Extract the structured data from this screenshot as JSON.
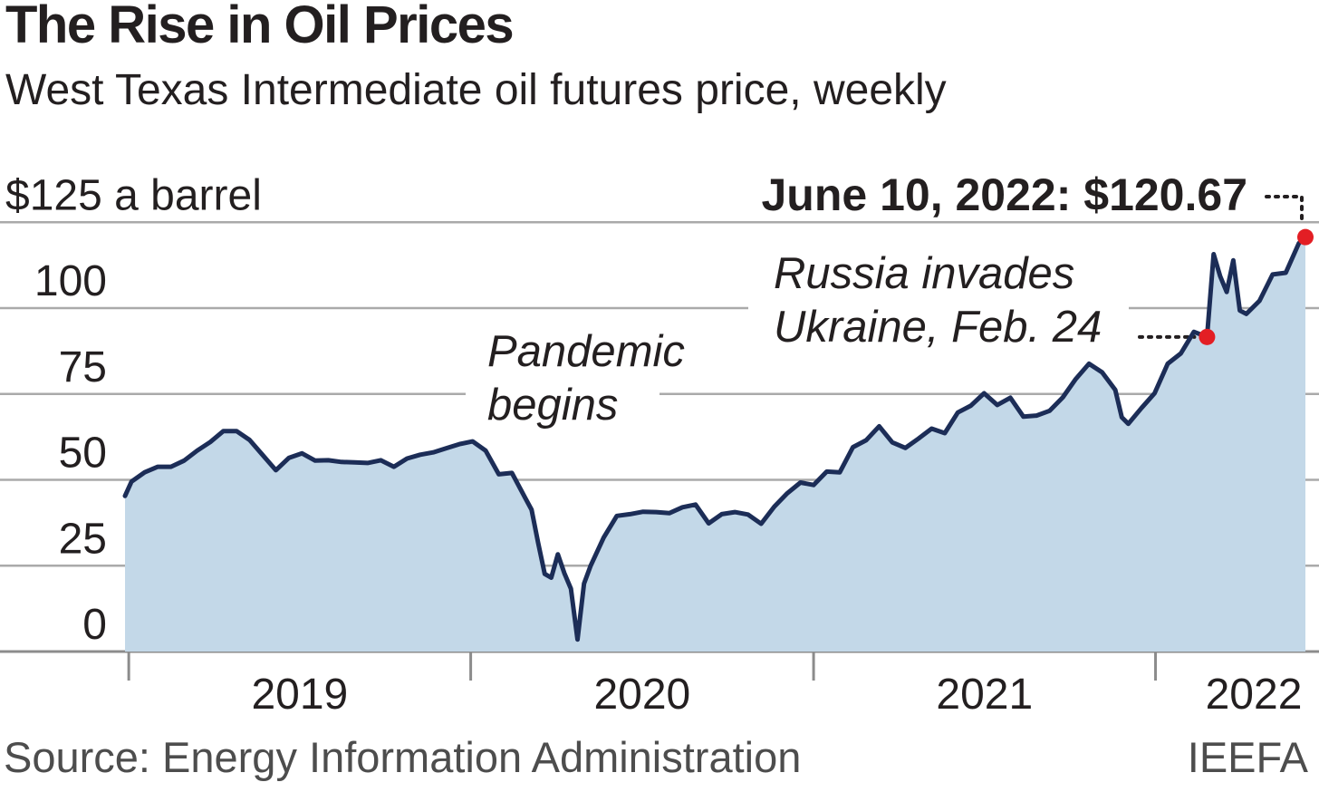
{
  "chart_data": {
    "type": "area",
    "title": "The Rise in Oil Prices",
    "subtitle": "West Texas Intermediate oil futures price, weekly",
    "ylabel": "$125 a barrel",
    "ylim": [
      0,
      125
    ],
    "yticks": [
      0,
      25,
      50,
      75,
      100,
      125
    ],
    "ytick_labels": [
      "0",
      "25",
      "50",
      "75",
      "100",
      "$125 a barrel"
    ],
    "xlim": [
      "2018-12-28",
      "2022-06-10"
    ],
    "xticks": [
      "2019-01-01",
      "2020-01-01",
      "2021-01-01",
      "2022-01-01"
    ],
    "xtick_labels": [
      "2019",
      "2020",
      "2021",
      "2022"
    ],
    "grid": true,
    "series": [
      {
        "x": [
          "2018-12-28",
          "2019-01-04",
          "2019-01-18",
          "2019-02-01",
          "2019-02-15",
          "2019-03-01",
          "2019-03-15",
          "2019-03-29",
          "2019-04-12",
          "2019-04-26",
          "2019-05-10",
          "2019-05-24",
          "2019-06-07",
          "2019-06-21",
          "2019-07-05",
          "2019-07-19",
          "2019-08-02",
          "2019-08-16",
          "2019-08-30",
          "2019-09-13",
          "2019-09-27",
          "2019-10-11",
          "2019-10-25",
          "2019-11-08",
          "2019-11-22",
          "2019-12-06",
          "2019-12-20",
          "2020-01-03",
          "2020-01-17",
          "2020-01-31",
          "2020-02-14",
          "2020-02-28",
          "2020-03-06",
          "2020-03-13",
          "2020-03-20",
          "2020-03-27",
          "2020-04-03",
          "2020-04-10",
          "2020-04-17",
          "2020-04-24",
          "2020-05-01",
          "2020-05-08",
          "2020-05-22",
          "2020-06-05",
          "2020-06-19",
          "2020-07-03",
          "2020-07-17",
          "2020-07-31",
          "2020-08-14",
          "2020-08-28",
          "2020-09-11",
          "2020-09-25",
          "2020-10-09",
          "2020-10-23",
          "2020-11-06",
          "2020-11-20",
          "2020-12-04",
          "2020-12-18",
          "2021-01-01",
          "2021-01-15",
          "2021-01-29",
          "2021-02-12",
          "2021-02-26",
          "2021-03-12",
          "2021-03-26",
          "2021-04-09",
          "2021-04-23",
          "2021-05-07",
          "2021-05-21",
          "2021-06-04",
          "2021-06-18",
          "2021-07-02",
          "2021-07-16",
          "2021-07-30",
          "2021-08-13",
          "2021-08-27",
          "2021-09-10",
          "2021-09-24",
          "2021-10-08",
          "2021-10-22",
          "2021-11-05",
          "2021-11-19",
          "2021-11-26",
          "2021-12-03",
          "2021-12-17",
          "2021-12-31",
          "2022-01-14",
          "2022-01-28",
          "2022-02-11",
          "2022-02-25",
          "2022-03-04",
          "2022-03-11",
          "2022-03-18",
          "2022-03-25",
          "2022-04-01",
          "2022-04-08",
          "2022-04-22",
          "2022-05-06",
          "2022-05-20",
          "2022-06-03",
          "2022-06-10"
        ],
        "y": [
          45.3,
          49.5,
          52.2,
          53.8,
          53.8,
          55.6,
          58.5,
          61.0,
          64.2,
          64.2,
          61.6,
          57.2,
          52.8,
          56.4,
          57.7,
          55.6,
          55.7,
          55.2,
          55.1,
          54.9,
          55.7,
          53.8,
          56.2,
          57.3,
          58.0,
          59.2,
          60.4,
          61.2,
          58.5,
          51.6,
          52.0,
          44.8,
          41.3,
          31.7,
          22.6,
          21.5,
          28.3,
          22.8,
          18.3,
          3.5,
          19.8,
          25.0,
          33.2,
          39.5,
          40.0,
          40.7,
          40.6,
          40.3,
          42.0,
          42.8,
          37.3,
          40.0,
          40.6,
          39.9,
          37.2,
          42.2,
          46.1,
          49.2,
          48.5,
          52.4,
          52.2,
          59.5,
          61.5,
          65.6,
          60.9,
          59.3,
          62.0,
          64.9,
          63.6,
          69.6,
          71.6,
          75.2,
          71.8,
          73.9,
          68.4,
          68.7,
          70.1,
          74.0,
          79.4,
          83.8,
          81.3,
          76.2,
          68.2,
          66.3,
          70.9,
          75.2,
          83.8,
          86.8,
          93.1,
          91.6,
          115.7,
          109.3,
          104.7,
          113.9,
          99.3,
          98.3,
          102.1,
          109.8,
          110.3,
          118.9,
          120.67
        ],
        "color": "#1c2d57",
        "fill": "#c3d8e8"
      }
    ],
    "annotations": [
      {
        "text_lines": [
          "Pandemic",
          "begins"
        ],
        "x": "2020-04-24"
      },
      {
        "text_lines": [
          "Russia invades",
          "Ukraine, Feb. 24"
        ],
        "x": "2022-02-25",
        "y": 91.6,
        "marker_color": "#e31e24"
      },
      {
        "text": "June 10, 2022: $120.67",
        "x": "2022-06-10",
        "y": 120.67,
        "marker_color": "#e31e24"
      }
    ]
  },
  "source": "Source: Energy Information Administration",
  "credit": "IEEFA"
}
